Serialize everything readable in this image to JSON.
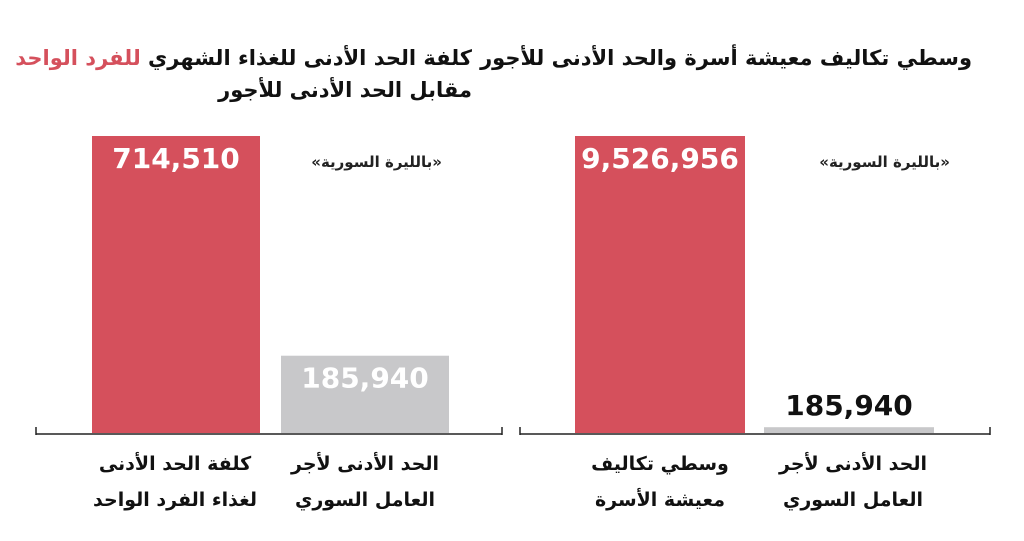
{
  "chart_data": [
    {
      "type": "bar",
      "title_line1": "كلفة الحد الأدنى للغذاء الشهري",
      "title_accent": "للفرد الواحد",
      "title_line2": "مقابل الحد الأدنى للأجور",
      "unit_note": "«بالليرة السورية»",
      "categories": [
        "كلفة الحد الأدنى لغذاء الفرد الواحد",
        "الحد الأدنى لأجر العامل السوري"
      ],
      "category_lines": [
        [
          "كلفة الحد الأدنى",
          "لغذاء الفرد الواحد"
        ],
        [
          "الحد الأدنى لأجر",
          "العامل السوري"
        ]
      ],
      "values": [
        714510,
        185940
      ],
      "value_labels": [
        "714,510",
        "185,940"
      ],
      "colors": [
        "#d5505c",
        "#c8c8ca"
      ],
      "ylim": [
        0,
        714510
      ]
    },
    {
      "type": "bar",
      "title_line1": "وسطي تكاليف معيشة أسرة والحد الأدنى للأجور",
      "unit_note": "«بالليرة السورية»",
      "categories": [
        "وسطي تكاليف معيشة الأسرة",
        "الحد الأدنى لأجر العامل السوري"
      ],
      "category_lines": [
        [
          "وسطي تكاليف",
          "معيشة الأسرة"
        ],
        [
          "الحد الأدنى لأجر",
          "العامل السوري"
        ]
      ],
      "values": [
        9526956,
        185940
      ],
      "value_labels": [
        "9,526,956",
        "185,940"
      ],
      "colors": [
        "#d5505c",
        "#c8c8ca"
      ],
      "ylim": [
        0,
        9526956
      ]
    }
  ]
}
